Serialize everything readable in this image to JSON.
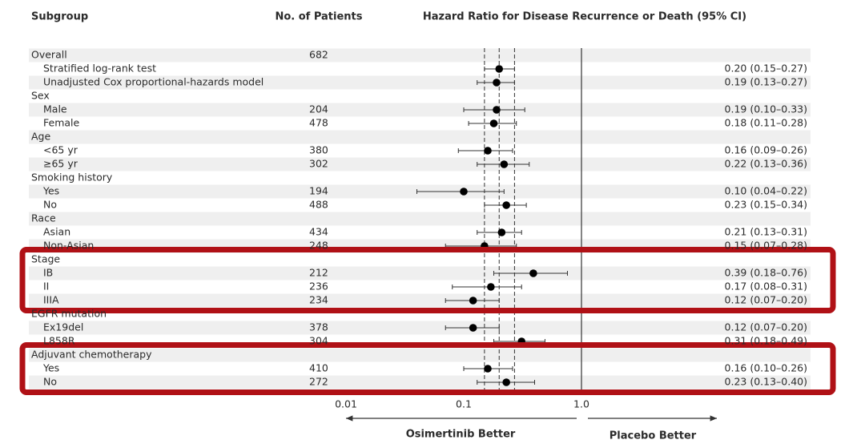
{
  "chart_data": {
    "type": "forest",
    "columns": [
      "Subgroup",
      "No. of Patients",
      "Hazard Ratio for Disease Recurrence or Death (95% CI)"
    ],
    "xscale": "log",
    "xlim": [
      0.01,
      1
    ],
    "xticks": [
      0.01,
      0.1,
      {
        "value": 1,
        "label": "1.0"
      }
    ],
    "left_label": "Osimertinib Better",
    "right_label": "Placebo Better",
    "marker_color": "#000000",
    "highlight_color": "#b01116",
    "rows": [
      {
        "label": "Overall",
        "n": 682
      },
      {
        "label": "Stratified log-rank test",
        "estimate": 0.2,
        "ci": [
          0.15,
          0.27
        ],
        "value_label": "0.20 (0.15–0.27)"
      },
      {
        "label": "Unadjusted Cox proportional-hazards model",
        "estimate": 0.19,
        "ci": [
          0.13,
          0.27
        ],
        "value_label": "0.19 (0.13–0.27)"
      },
      {
        "label": "Sex"
      },
      {
        "label": "Male",
        "n": 204,
        "estimate": 0.19,
        "ci": [
          0.1,
          0.33
        ],
        "value_label": "0.19 (0.10–0.33)"
      },
      {
        "label": "Female",
        "n": 478,
        "estimate": 0.18,
        "ci": [
          0.11,
          0.28
        ],
        "value_label": "0.18 (0.11–0.28)"
      },
      {
        "label": "Age"
      },
      {
        "label": "<65 yr",
        "n": 380,
        "estimate": 0.16,
        "ci": [
          0.09,
          0.26
        ],
        "value_label": "0.16 (0.09–0.26)"
      },
      {
        "label": "≥65 yr",
        "n": 302,
        "estimate": 0.22,
        "ci": [
          0.13,
          0.36
        ],
        "value_label": "0.22 (0.13–0.36)"
      },
      {
        "label": "Smoking history"
      },
      {
        "label": "Yes",
        "n": 194,
        "estimate": 0.1,
        "ci": [
          0.04,
          0.22
        ],
        "value_label": "0.10 (0.04–0.22)"
      },
      {
        "label": "No",
        "n": 488,
        "estimate": 0.23,
        "ci": [
          0.15,
          0.34
        ],
        "value_label": "0.23 (0.15–0.34)"
      },
      {
        "label": "Race"
      },
      {
        "label": "Asian",
        "n": 434,
        "estimate": 0.21,
        "ci": [
          0.13,
          0.31
        ],
        "value_label": "0.21 (0.13–0.31)"
      },
      {
        "label": "Non-Asian",
        "n": 248,
        "estimate": 0.15,
        "ci": [
          0.07,
          0.28
        ],
        "value_label": "0.15 (0.07–0.28)"
      },
      {
        "label": "Stage"
      },
      {
        "label": "IB",
        "n": 212,
        "estimate": 0.39,
        "ci": [
          0.18,
          0.76
        ],
        "value_label": "0.39 (0.18–0.76)"
      },
      {
        "label": "II",
        "n": 236,
        "estimate": 0.17,
        "ci": [
          0.08,
          0.31
        ],
        "value_label": "0.17 (0.08–0.31)"
      },
      {
        "label": "IIIA",
        "n": 234,
        "estimate": 0.12,
        "ci": [
          0.07,
          0.2
        ],
        "value_label": "0.12 (0.07–0.20)"
      },
      {
        "label": "EGFR mutation"
      },
      {
        "label": "Ex19del",
        "n": 378,
        "estimate": 0.12,
        "ci": [
          0.07,
          0.2
        ],
        "value_label": "0.12 (0.07–0.20)"
      },
      {
        "label": "L858R",
        "n": 304,
        "estimate": 0.31,
        "ci": [
          0.18,
          0.49
        ],
        "value_label": "0.31 (0.18–0.49)"
      },
      {
        "label": "Adjuvant chemotherapy"
      },
      {
        "label": "Yes",
        "n": 410,
        "estimate": 0.16,
        "ci": [
          0.1,
          0.26
        ],
        "value_label": "0.16 (0.10–0.26)"
      },
      {
        "label": "No",
        "n": 272,
        "estimate": 0.23,
        "ci": [
          0.13,
          0.4
        ],
        "value_label": "0.23 (0.13–0.40)"
      }
    ]
  }
}
